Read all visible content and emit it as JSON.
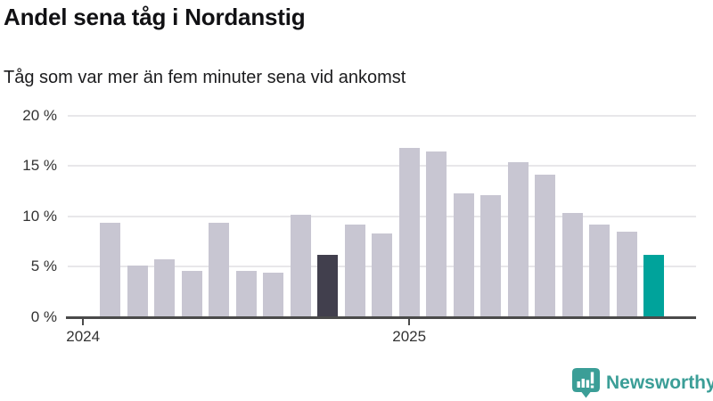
{
  "chart_data": {
    "type": "bar",
    "title": "Andel sena tåg i Nordanstig",
    "subtitle": "Tåg som var mer än fem minuter sena vid ankomst",
    "unit": "%",
    "ylim": [
      0,
      20
    ],
    "ytick_step": 5,
    "ytick_labels": [
      "0 %",
      "5 %",
      "10 %",
      "15 %",
      "20 %"
    ],
    "xticks": [
      {
        "label": "2024",
        "month_offset": 0
      },
      {
        "label": "2025",
        "month_offset": 12
      }
    ],
    "first_bar_month_offset": 1,
    "values": [
      9.4,
      5.1,
      5.7,
      4.6,
      9.4,
      4.6,
      4.4,
      10.2,
      6.2,
      9.2,
      8.3,
      16.8,
      16.4,
      12.3,
      12.1,
      15.4,
      14.1,
      10.3,
      9.2,
      8.5,
      6.2
    ],
    "highlight_dark_index": 8,
    "highlight_teal_index": 20,
    "grid": true,
    "legend": "none",
    "colors": {
      "bar_default": "#c8c6d2",
      "bar_dark": "#413f4d",
      "bar_teal": "#00a39b",
      "gridline": "#e8e7ea",
      "axis": "#4a4a4a",
      "tick_label": "#333333"
    }
  },
  "footer": {
    "brand": "Newsworthy",
    "brand_color": "#3b9e97"
  }
}
